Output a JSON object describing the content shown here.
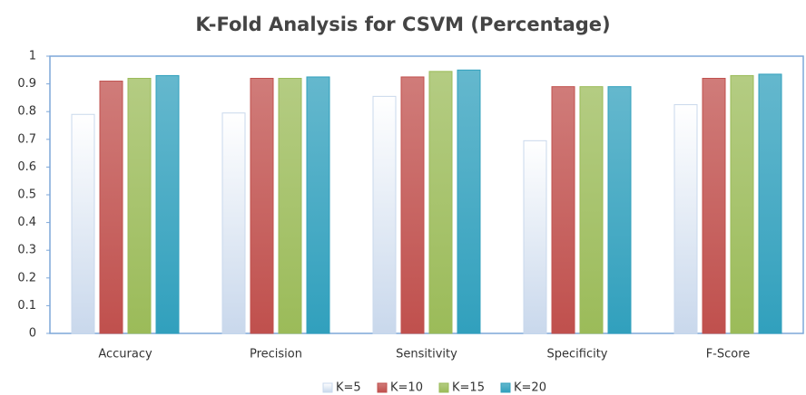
{
  "chart_data": {
    "type": "bar",
    "title": "K-Fold Analysis  for CSVM (Percentage)",
    "categories": [
      "Accuracy",
      "Precision",
      "Sensitivity",
      "Specificity",
      "F-Score"
    ],
    "series": [
      {
        "name": "K=5",
        "color": "#c9d8ec",
        "values": [
          0.79,
          0.795,
          0.855,
          0.695,
          0.825
        ]
      },
      {
        "name": "K=10",
        "color": "#c0504d",
        "values": [
          0.91,
          0.92,
          0.925,
          0.89,
          0.92
        ]
      },
      {
        "name": "K=15",
        "color": "#9bbb59",
        "values": [
          0.92,
          0.92,
          0.945,
          0.89,
          0.93
        ]
      },
      {
        "name": "K=20",
        "color": "#31a0bd",
        "values": [
          0.93,
          0.925,
          0.95,
          0.89,
          0.935
        ]
      }
    ],
    "ylim": [
      0,
      1
    ],
    "yticks": [
      0,
      0.1,
      0.2,
      0.3,
      0.4,
      0.5,
      0.6,
      0.7,
      0.8,
      0.9,
      1
    ],
    "legend": "bottom"
  }
}
